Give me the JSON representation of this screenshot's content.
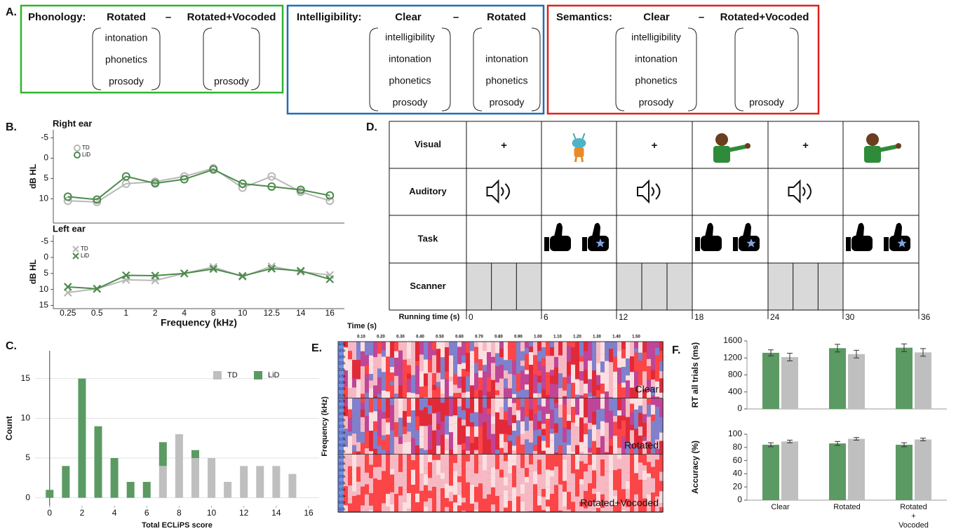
{
  "panel_labels": [
    "A.",
    "B.",
    "C.",
    "D.",
    "E.",
    "F."
  ],
  "panel_a": {
    "boxes": [
      {
        "title": "Phonology:",
        "left": "Rotated",
        "dash": "–",
        "right": "Rotated+Vocoded",
        "left_items": [
          "intonation",
          "phonetics",
          "prosody"
        ],
        "right_items": [
          "prosody"
        ]
      },
      {
        "title": "Intelligibility:",
        "left": "Clear",
        "dash": "–",
        "right": "Rotated",
        "left_items": [
          "intelligibility",
          "intonation",
          "phonetics",
          "prosody"
        ],
        "right_items": [
          "intonation",
          "phonetics",
          "prosody"
        ]
      },
      {
        "title": "Semantics:",
        "left": "Clear",
        "dash": "–",
        "right": "Rotated+Vocoded",
        "left_items": [
          "intelligibility",
          "intonation",
          "phonetics",
          "prosody"
        ],
        "right_items": [
          "prosody"
        ]
      }
    ]
  },
  "chart_data": [
    {
      "type": "line",
      "title": "Right ear",
      "ylabel": "dB HL",
      "categories": [
        null,
        null,
        null,
        null,
        null,
        null,
        null,
        null,
        null,
        null
      ],
      "ylim": [
        -7,
        16
      ],
      "y_reversed": true,
      "yticks": [
        -5,
        0,
        5,
        10
      ],
      "marker": "circle",
      "series": [
        {
          "name": "TD",
          "color": "#b8b8b8",
          "values": [
            10.5,
            10.8,
            6.3,
            5.8,
            4.5,
            2.5,
            7.3,
            4.5,
            8.3,
            10.5
          ]
        },
        {
          "name": "LiD",
          "color": "#4b8b4b",
          "values": [
            9.5,
            10.2,
            4.5,
            6.2,
            5.2,
            2.8,
            6.3,
            7.0,
            7.8,
            9.2
          ]
        }
      ]
    },
    {
      "type": "line",
      "title": "Left ear",
      "ylabel": "dB HL",
      "xlabel": "Frequency (kHz)",
      "categories": [
        "0.25",
        "0.5",
        "1",
        "2",
        "4",
        "8",
        "10",
        "12.5",
        "14",
        "16"
      ],
      "ylim": [
        -7,
        16
      ],
      "y_reversed": true,
      "yticks": [
        -5,
        0,
        5,
        10,
        15
      ],
      "marker": "x",
      "series": [
        {
          "name": "TD",
          "color": "#b8b8b8",
          "values": [
            11,
            9.8,
            7,
            7.2,
            5,
            3,
            6,
            2.8,
            4.5,
            5.5
          ]
        },
        {
          "name": "LiD",
          "color": "#4b8b4b",
          "values": [
            9.2,
            9.8,
            5.6,
            5.7,
            5,
            3.6,
            5.8,
            3.5,
            4.2,
            6.8
          ]
        }
      ]
    },
    {
      "type": "stacked",
      "xlabel": "Total ECLiPS score",
      "ylabel": "Count",
      "x": [
        0,
        1,
        2,
        3,
        4,
        5,
        6,
        7,
        8,
        9,
        10,
        11,
        12,
        13,
        14,
        15
      ],
      "xlim": [
        -0.9,
        16.65
      ],
      "xticks": [
        0,
        2,
        4,
        6,
        8,
        10,
        12,
        14,
        16
      ],
      "ylim": [
        -1,
        18.5
      ],
      "yticks": [
        0,
        5,
        10,
        15
      ],
      "grid": true,
      "series": [
        {
          "name": "TD",
          "color": "#bfbfbf",
          "values": [
            0,
            0,
            0,
            0,
            0,
            0,
            0,
            4,
            8,
            5,
            5,
            2,
            4,
            4,
            4,
            3
          ]
        },
        {
          "name": "LiD",
          "color": "#5b9a62",
          "values": [
            1,
            4,
            15,
            9,
            5,
            2,
            2,
            3,
            0,
            1,
            0,
            0,
            0,
            0,
            0,
            0
          ]
        }
      ]
    },
    {
      "type": "bar",
      "ylabel": "RT all trials (ms)",
      "categories": [
        null,
        null,
        null
      ],
      "ylim": [
        0,
        1600
      ],
      "yticks": [
        0,
        400,
        800,
        1200,
        1600
      ],
      "series": [
        {
          "color": "#5b9a62",
          "values": [
            1320,
            1430,
            1440
          ],
          "errors": [
            70,
            90,
            90
          ]
        },
        {
          "color": "#bfbfbf",
          "values": [
            1220,
            1290,
            1330
          ],
          "errors": [
            90,
            90,
            90
          ]
        }
      ]
    },
    {
      "type": "bar",
      "ylabel": "Accuracy (%)",
      "categories": [
        "Clear",
        "Rotated",
        "Rotated + Vocoded"
      ],
      "ylim": [
        0,
        100
      ],
      "yticks": [
        0,
        20,
        40,
        60,
        80,
        100
      ],
      "series": [
        {
          "color": "#5b9a62",
          "values": [
            84,
            86,
            84
          ],
          "errors": [
            3,
            3,
            3
          ]
        },
        {
          "color": "#bfbfbf",
          "values": [
            89,
            93,
            92
          ],
          "errors": [
            2,
            2,
            2
          ]
        }
      ]
    }
  ],
  "panel_d": {
    "row_labels": [
      "Visual",
      "Auditory",
      "Task",
      "Scanner"
    ],
    "fixations": [
      "+",
      "+",
      "+"
    ],
    "running_time_label": "Running time (s)",
    "times": [
      "0",
      "6",
      "12",
      "18",
      "24",
      "30",
      "36"
    ]
  },
  "panel_e": {
    "time_label": "Time (s)",
    "time_ticks": [
      "0.10",
      "0.20",
      "0.30",
      "0.40",
      "0.50",
      "0.60",
      "0.70",
      "0.80",
      "0.90",
      "1.00",
      "1.10",
      "1.20",
      "1.30",
      "1.40",
      "1.50"
    ],
    "freq_ticks": [
      "4.0k",
      "3.5k",
      "3.0k",
      "2.5k",
      "2.0k",
      "1.5k",
      "1.0k",
      "0.5k",
      "0.0k"
    ],
    "y_label": "Frequency (kHz)",
    "conditions": [
      "Clear",
      "Rotated",
      "Rotated+Vocoded"
    ]
  }
}
